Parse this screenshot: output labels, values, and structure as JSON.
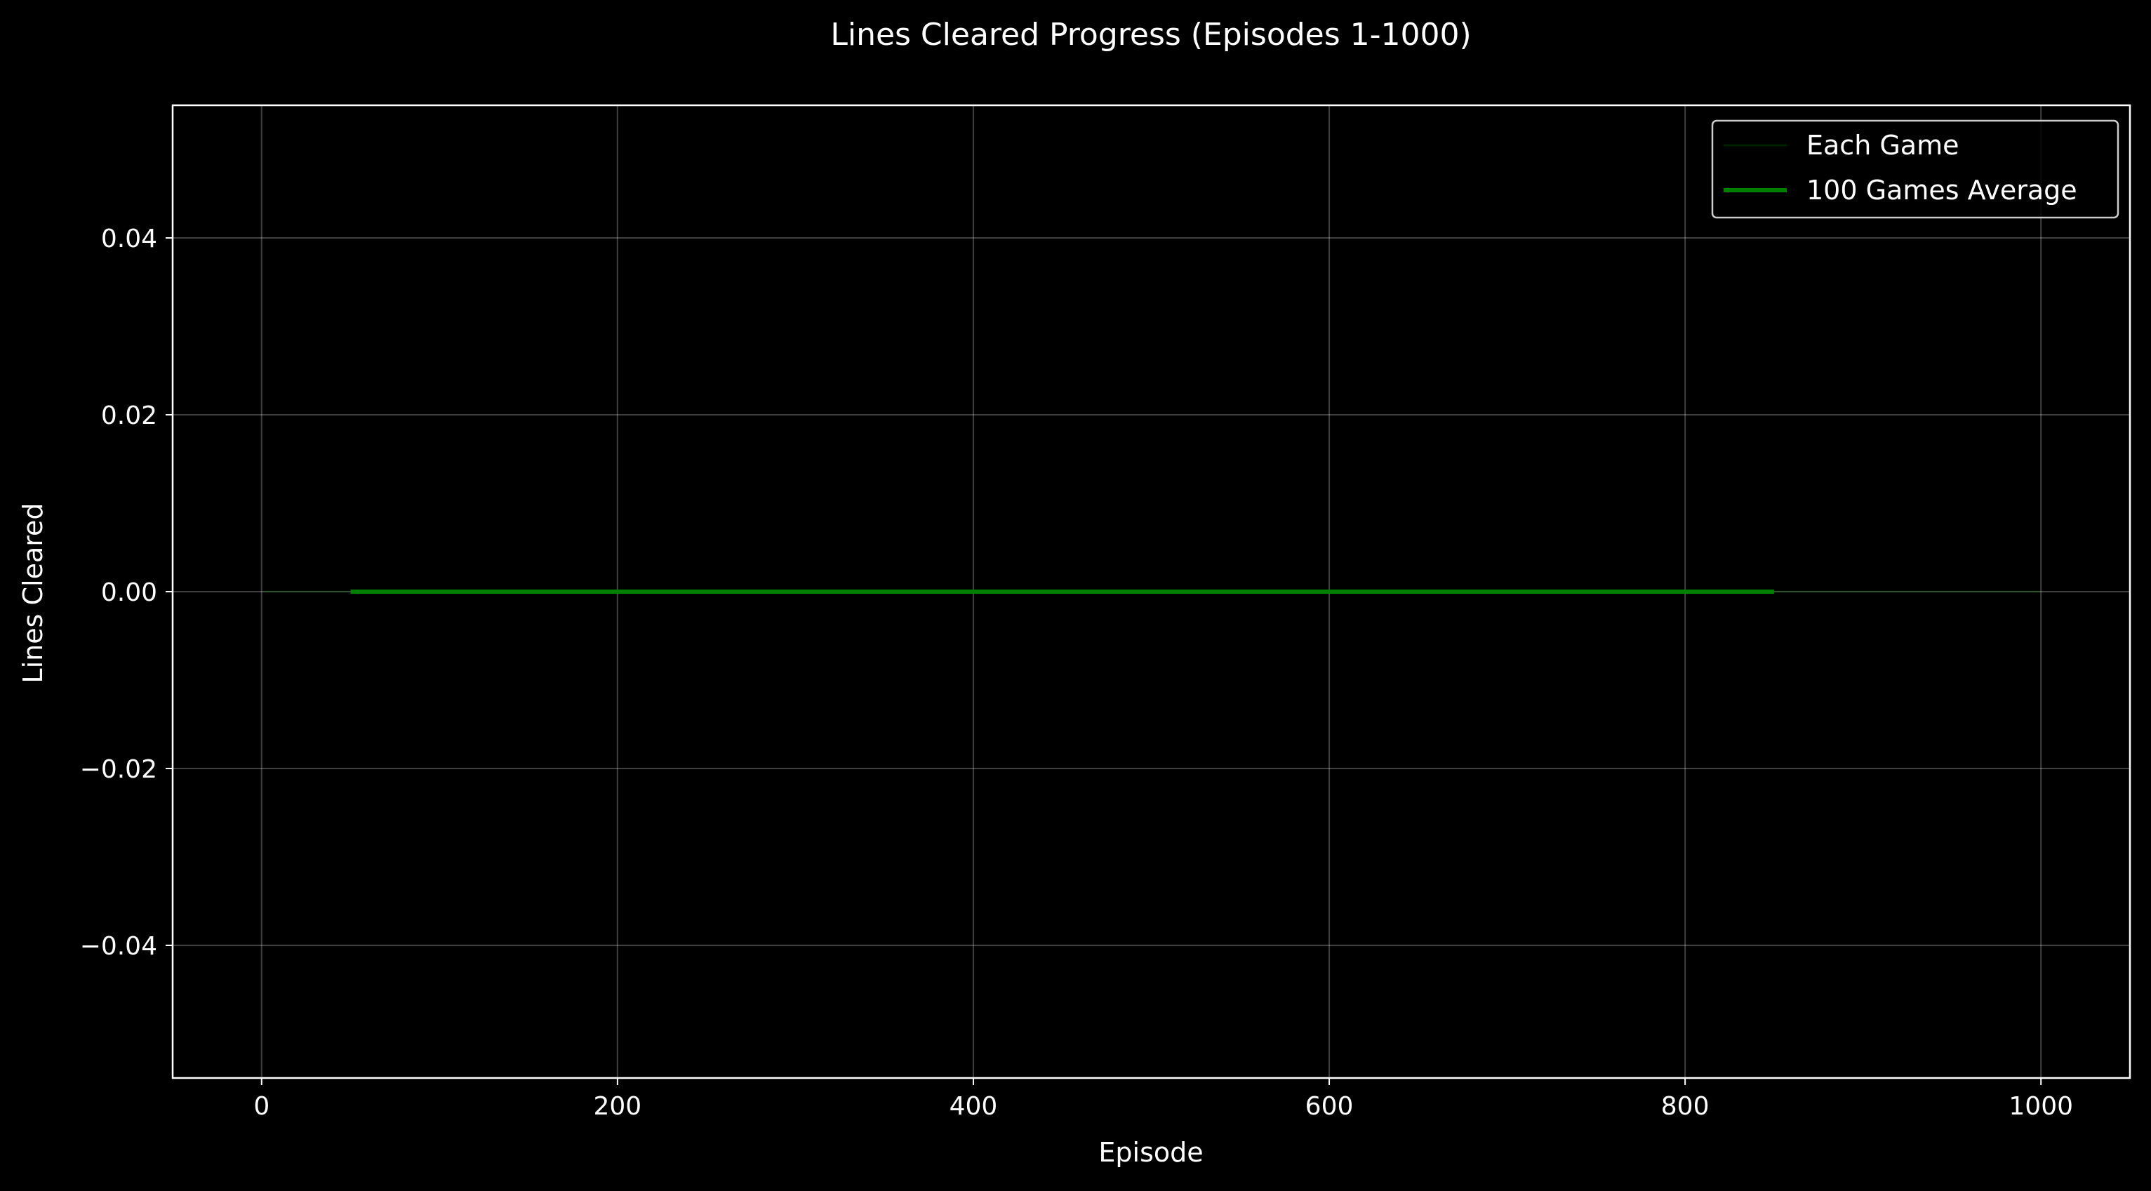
{
  "chart_data": {
    "type": "line",
    "title": "Lines Cleared Progress (Episodes 1-1000)",
    "xlabel": "Episode",
    "ylabel": "Lines Cleared",
    "xlim": [
      -50,
      1050
    ],
    "ylim": [
      -0.055,
      0.055
    ],
    "x_ticks": [
      0,
      200,
      400,
      600,
      800,
      1000
    ],
    "x_tick_labels": [
      "0",
      "200",
      "400",
      "600",
      "800",
      "1000"
    ],
    "y_ticks": [
      -0.04,
      -0.02,
      0.0,
      0.02,
      0.04
    ],
    "y_tick_labels": [
      "−0.04",
      "−0.02",
      "0.00",
      "0.02",
      "0.04"
    ],
    "grid": true,
    "legend_position": "top-right",
    "series": [
      {
        "name": "Each Game",
        "color": "#008000",
        "opacity": 0.25,
        "x": [
          1,
          1000
        ],
        "y": [
          0,
          0
        ]
      },
      {
        "name": "100 Games Average",
        "color": "#008000",
        "opacity": 1,
        "x": [
          50,
          850
        ],
        "y": [
          0,
          0
        ]
      }
    ]
  }
}
